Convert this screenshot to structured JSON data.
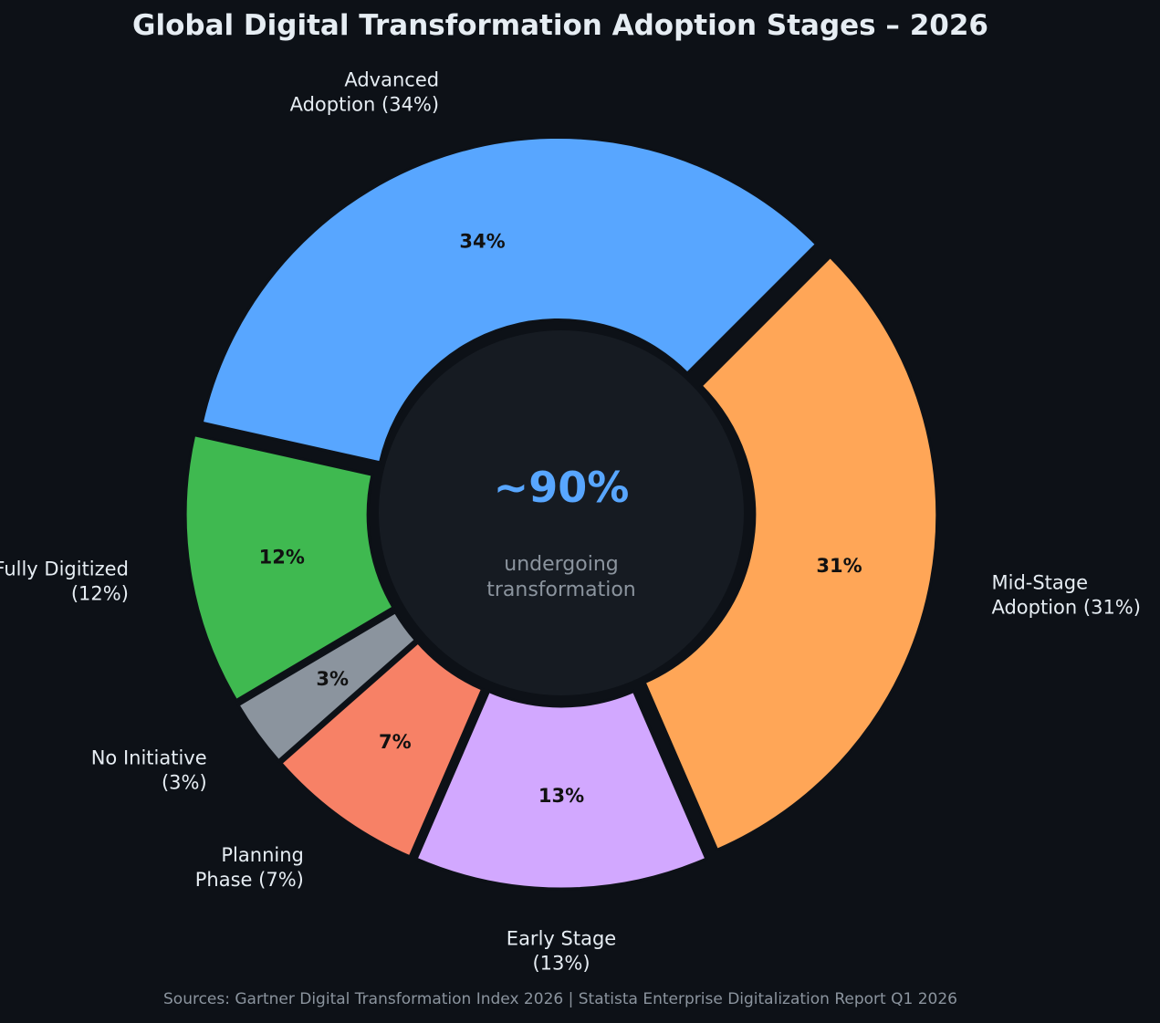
{
  "chart_data": {
    "type": "pie",
    "style": "donut",
    "title": "Global Digital Transformation Adoption Stages – 2026",
    "slices": [
      {
        "name": "Mid-Stage Adoption",
        "value": 31,
        "label_lines": [
          "Mid-Stage",
          "Adoption (31%)"
        ],
        "pct_label": "31%",
        "color": "#ffa657"
      },
      {
        "name": "Early Stage",
        "value": 13,
        "label_lines": [
          "Early Stage",
          "(13%)"
        ],
        "pct_label": "13%",
        "color": "#d2a8ff"
      },
      {
        "name": "Planning Phase",
        "value": 7,
        "label_lines": [
          "Planning",
          "Phase (7%)"
        ],
        "pct_label": "7%",
        "color": "#f78166"
      },
      {
        "name": "No Initiative",
        "value": 3,
        "label_lines": [
          "No Initiative",
          "(3%)"
        ],
        "pct_label": "3%",
        "color": "#8b949e"
      },
      {
        "name": "Fully Digitized",
        "value": 12,
        "label_lines": [
          "Fully Digitized",
          "(12%)"
        ],
        "pct_label": "12%",
        "color": "#3fb950"
      },
      {
        "name": "Advanced Adoption",
        "value": 34,
        "label_lines": [
          "Advanced",
          "Adoption (34%)"
        ],
        "pct_label": "34%",
        "color": "#58a6ff"
      }
    ],
    "center": {
      "value": "~90%",
      "caption_lines": [
        "undergoing",
        "transformation"
      ],
      "value_color": "#58a6ff",
      "fill_color": "#161b22"
    },
    "source": "Sources: Gartner Digital Transformation Index 2026 | Statista Enterprise Digitalization Report Q1 2026"
  }
}
